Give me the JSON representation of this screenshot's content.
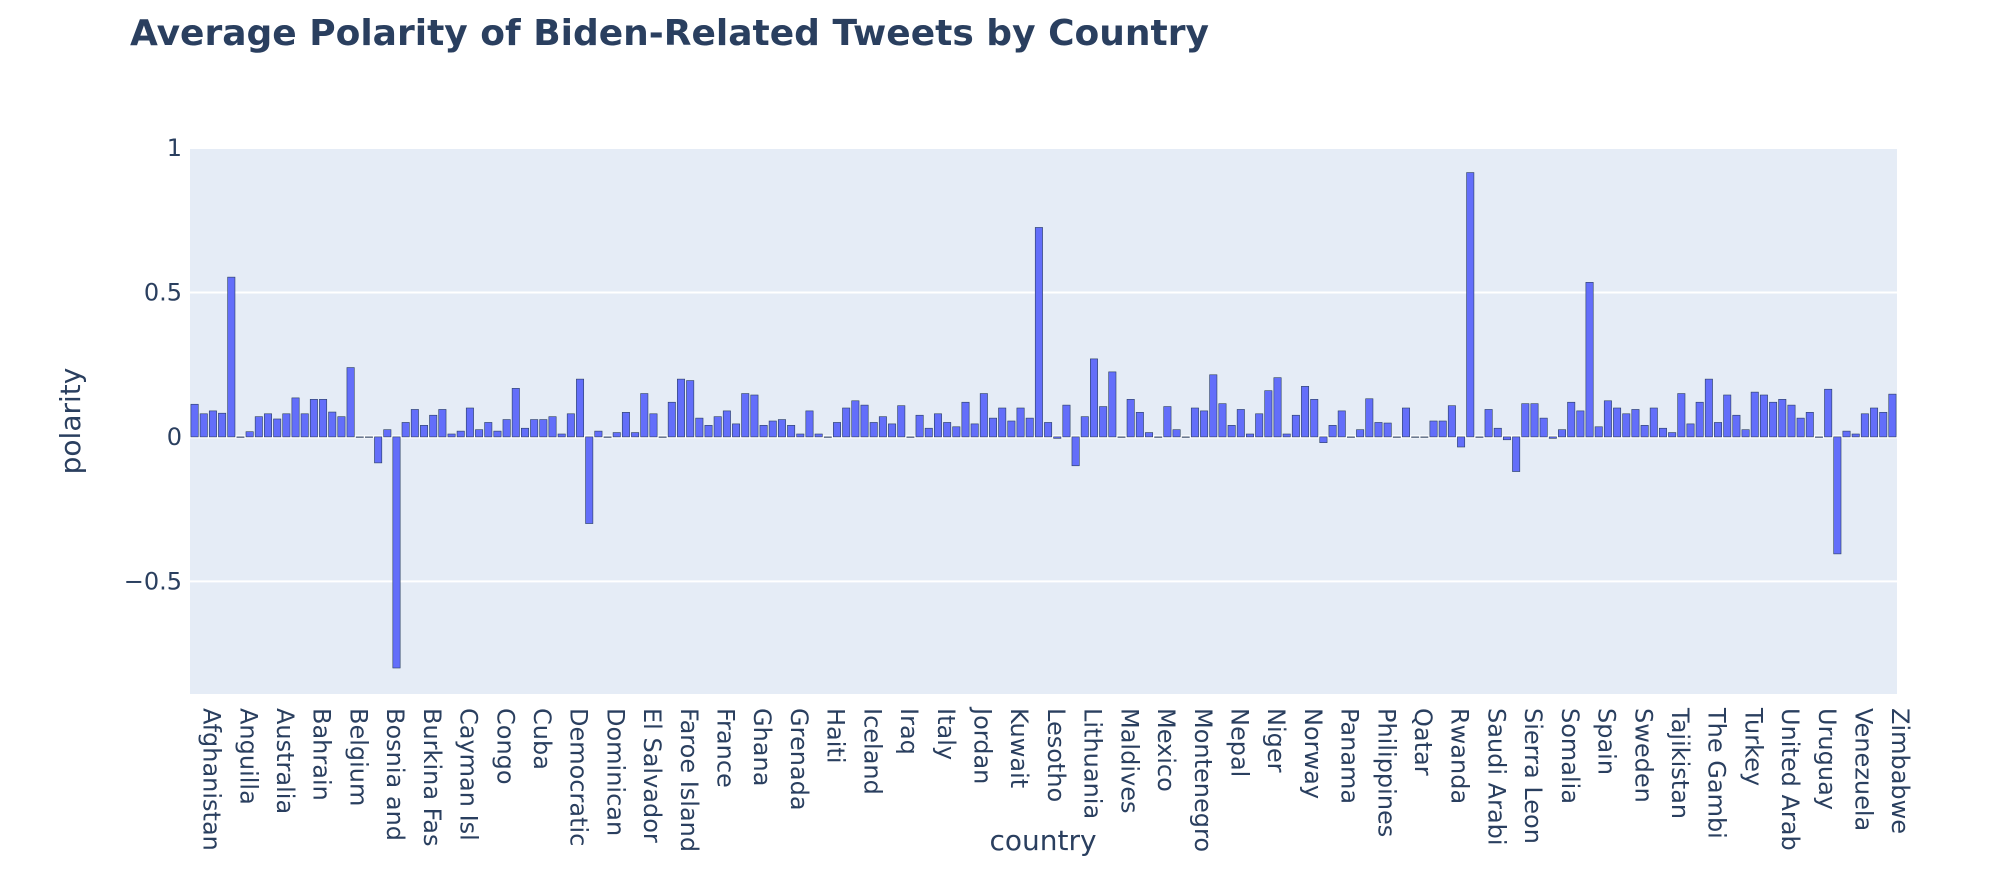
{
  "chart_data": {
    "type": "bar",
    "title": "Average Polarity of Biden-Related Tweets by Country",
    "xlabel": "country",
    "ylabel": "polarity",
    "ylim": [
      -0.89,
      1.0
    ],
    "yticks": [
      1,
      0.5,
      0,
      -0.5
    ],
    "ytick_labels": [
      "1",
      "0.5",
      "0",
      "−0.5"
    ],
    "bar_color": "#636efa",
    "bar_outline": "#2a3f5f",
    "plot_bg": "#e5ecf6",
    "grid": true,
    "x_tick_labels": [
      {
        "index": 0,
        "label": "Afghanistan"
      },
      {
        "index": 4,
        "label": "Anguilla"
      },
      {
        "index": 8,
        "label": "Australia"
      },
      {
        "index": 12,
        "label": "Bahrain"
      },
      {
        "index": 16,
        "label": "Belgium"
      },
      {
        "index": 20,
        "label": "Bosnia and I"
      },
      {
        "index": 24,
        "label": "Burkina Faso"
      },
      {
        "index": 28,
        "label": "Cayman Isla"
      },
      {
        "index": 32,
        "label": "Congo"
      },
      {
        "index": 36,
        "label": "Cuba"
      },
      {
        "index": 40,
        "label": "Democratic"
      },
      {
        "index": 44,
        "label": "Dominican R"
      },
      {
        "index": 48,
        "label": "El Salvador"
      },
      {
        "index": 52,
        "label": "Faroe Island"
      },
      {
        "index": 56,
        "label": "France"
      },
      {
        "index": 60,
        "label": "Ghana"
      },
      {
        "index": 64,
        "label": "Grenada"
      },
      {
        "index": 68,
        "label": "Haiti"
      },
      {
        "index": 72,
        "label": "Iceland"
      },
      {
        "index": 76,
        "label": "Iraq"
      },
      {
        "index": 80,
        "label": "Italy"
      },
      {
        "index": 84,
        "label": "Jordan"
      },
      {
        "index": 88,
        "label": "Kuwait"
      },
      {
        "index": 92,
        "label": "Lesotho"
      },
      {
        "index": 96,
        "label": "Lithuania"
      },
      {
        "index": 100,
        "label": "Maldives"
      },
      {
        "index": 104,
        "label": "Mexico"
      },
      {
        "index": 108,
        "label": "Montenegro"
      },
      {
        "index": 112,
        "label": "Nepal"
      },
      {
        "index": 116,
        "label": "Niger"
      },
      {
        "index": 120,
        "label": "Norway"
      },
      {
        "index": 124,
        "label": "Panama"
      },
      {
        "index": 128,
        "label": "Philippines"
      },
      {
        "index": 132,
        "label": "Qatar"
      },
      {
        "index": 136,
        "label": "Rwanda"
      },
      {
        "index": 140,
        "label": "Saudi Arabia"
      },
      {
        "index": 144,
        "label": "Sierra Leone"
      },
      {
        "index": 148,
        "label": "Somalia"
      },
      {
        "index": 152,
        "label": "Spain"
      },
      {
        "index": 156,
        "label": "Sweden"
      },
      {
        "index": 160,
        "label": "Tajikistan"
      },
      {
        "index": 164,
        "label": "The Gambia"
      },
      {
        "index": 168,
        "label": "Turkey"
      },
      {
        "index": 172,
        "label": "United Arab"
      },
      {
        "index": 176,
        "label": "Uruguay"
      },
      {
        "index": 180,
        "label": "Venezuela"
      },
      {
        "index": 184,
        "label": "Zimbabwe"
      }
    ],
    "values": [
      0.113,
      0.08,
      0.09,
      0.082,
      0.553,
      0.0,
      0.018,
      0.07,
      0.08,
      0.062,
      0.08,
      0.135,
      0.08,
      0.13,
      0.13,
      0.086,
      0.07,
      0.24,
      0.0,
      0.0,
      -0.09,
      0.025,
      -0.8,
      0.05,
      0.095,
      0.04,
      0.075,
      0.095,
      0.01,
      0.02,
      0.1,
      0.025,
      0.05,
      0.02,
      0.06,
      0.168,
      0.03,
      0.06,
      0.06,
      0.07,
      0.01,
      0.08,
      0.2,
      -0.3,
      0.02,
      0.0,
      0.015,
      0.085,
      0.015,
      0.15,
      0.08,
      0.0,
      0.12,
      0.2,
      0.195,
      0.065,
      0.04,
      0.07,
      0.09,
      0.045,
      0.15,
      0.145,
      0.04,
      0.055,
      0.06,
      0.04,
      0.01,
      0.09,
      0.01,
      0.0,
      0.05,
      0.1,
      0.125,
      0.11,
      0.05,
      0.07,
      0.045,
      0.108,
      0.0,
      0.075,
      0.03,
      0.08,
      0.05,
      0.035,
      0.12,
      0.045,
      0.15,
      0.065,
      0.1,
      0.055,
      0.1,
      0.065,
      0.725,
      0.05,
      -0.005,
      0.11,
      -0.1,
      0.07,
      0.27,
      0.105,
      0.225,
      0.0,
      0.13,
      0.085,
      0.015,
      0.0,
      0.105,
      0.025,
      0.0,
      0.1,
      0.09,
      0.215,
      0.115,
      0.04,
      0.095,
      0.01,
      0.08,
      0.16,
      0.205,
      0.01,
      0.075,
      0.175,
      0.13,
      -0.02,
      0.04,
      0.09,
      0.0,
      0.025,
      0.132,
      0.05,
      0.048,
      0.0,
      0.1,
      0.0,
      0.0,
      0.055,
      0.055,
      0.108,
      -0.035,
      0.915,
      0.0,
      0.095,
      0.03,
      -0.01,
      -0.12,
      0.115,
      0.115,
      0.065,
      -0.005,
      0.025,
      0.12,
      0.09,
      0.535,
      0.035,
      0.125,
      0.1,
      0.08,
      0.095,
      0.04,
      0.1,
      0.03,
      0.015,
      0.15,
      0.045,
      0.12,
      0.2,
      0.05,
      0.145,
      0.075,
      0.025,
      0.155,
      0.145,
      0.12,
      0.13,
      0.11,
      0.065,
      0.085,
      0.0,
      0.165,
      -0.405,
      0.02,
      0.01,
      0.08,
      0.1,
      0.085,
      0.148
    ]
  }
}
